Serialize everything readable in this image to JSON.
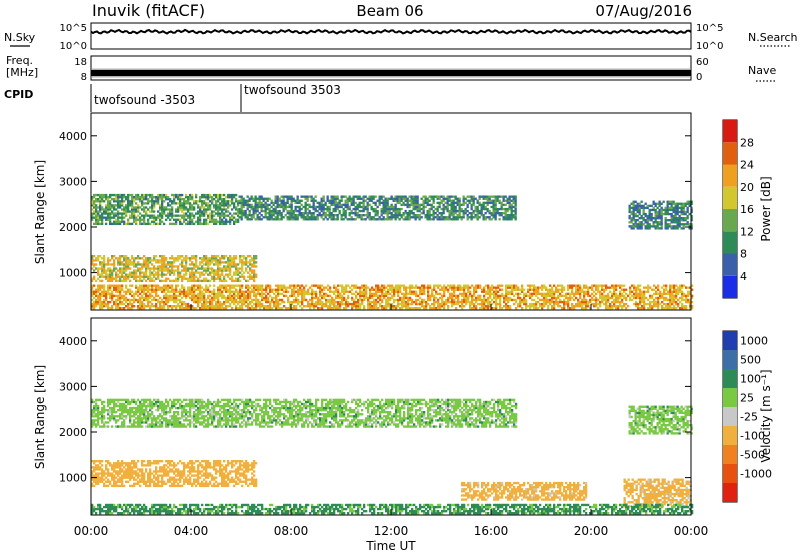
{
  "header": {
    "station": "Inuvik (fitACF)",
    "beam": "Beam 06",
    "date": "07/Aug/2016"
  },
  "noise_panel": {
    "left_label": "N.Sky",
    "right_label": "N.Search",
    "ticks": [
      "10^5",
      "10^0"
    ],
    "ylim_log10": [
      0,
      5
    ],
    "level_log10": 3.6
  },
  "freq_panel": {
    "left_label_line1": "Freq.",
    "left_label_line2": "[MHz]",
    "right_label": "Nave",
    "left_ticks": [
      "18",
      "8"
    ],
    "right_ticks": [
      "60",
      "0"
    ],
    "level_mhz": 10.5
  },
  "cpid": {
    "label": "CPID",
    "segments": [
      {
        "name": "twofsound -3503",
        "start_hour": 0
      },
      {
        "name": "twofsound 3503",
        "start_hour": 6
      }
    ]
  },
  "chart_data": [
    {
      "type": "heatmap",
      "quantity": "power",
      "ylabel": "Slant Range [km]",
      "xlabel": "",
      "xlim_hours": [
        0,
        24
      ],
      "ylim_km": [
        180,
        4500
      ],
      "y_ticks": [
        1000,
        2000,
        3000,
        4000
      ],
      "colorbar_label": "Power [dB]",
      "colorbar_ticks": [
        4,
        8,
        12,
        16,
        20,
        24,
        28
      ],
      "colorbar_colors": [
        "#1a2ee8",
        "#3b5fa8",
        "#2e8b57",
        "#6aa84f",
        "#d4c62e",
        "#f0a020",
        "#e06010",
        "#d81b12"
      ],
      "echo_bands": [
        {
          "from_hour": 0.0,
          "to_hour": 5.9,
          "low_km": 2050,
          "high_km": 2700,
          "value": 12
        },
        {
          "from_hour": 5.9,
          "to_hour": 17.0,
          "low_km": 2150,
          "high_km": 2650,
          "value": 10
        },
        {
          "from_hour": 21.5,
          "to_hour": 24.0,
          "low_km": 1950,
          "high_km": 2550,
          "value": 9
        },
        {
          "from_hour": 0.0,
          "to_hour": 6.6,
          "low_km": 800,
          "high_km": 1350,
          "value": 19
        },
        {
          "from_hour": 0.0,
          "to_hour": 24.0,
          "low_km": 200,
          "high_km": 700,
          "value": 21
        }
      ]
    },
    {
      "type": "heatmap",
      "quantity": "velocity",
      "ylabel": "Slant Range [km]",
      "xlabel": "Time UT",
      "x_ticks": [
        "00:00",
        "04:00",
        "08:00",
        "12:00",
        "16:00",
        "20:00",
        "00:00"
      ],
      "xlim_hours": [
        0,
        24
      ],
      "ylim_km": [
        180,
        4500
      ],
      "y_ticks": [
        1000,
        2000,
        3000,
        4000
      ],
      "colorbar_label": "Velocity [m s⁻¹]",
      "colorbar_ticks": [
        "1000",
        "500",
        "100",
        "25",
        "-25",
        "-100",
        "-500",
        "-1000"
      ],
      "colorbar_colors": [
        "#1f3fb0",
        "#3c6ea8",
        "#2e8b57",
        "#7ac943",
        "#c8c8c8",
        "#f0b040",
        "#f08020",
        "#e85010",
        "#e02010"
      ],
      "echo_bands": [
        {
          "from_hour": 0.0,
          "to_hour": 17.0,
          "low_km": 2100,
          "high_km": 2700,
          "value": 0
        },
        {
          "from_hour": 21.5,
          "to_hour": 24.0,
          "low_km": 1950,
          "high_km": 2550,
          "value": 0
        },
        {
          "from_hour": 0.0,
          "to_hour": 6.6,
          "low_km": 800,
          "high_km": 1350,
          "value": -300
        },
        {
          "from_hour": 14.8,
          "to_hour": 19.8,
          "low_km": 500,
          "high_km": 900,
          "value": -200
        },
        {
          "from_hour": 21.3,
          "to_hour": 24.0,
          "low_km": 350,
          "high_km": 950,
          "value": -200
        },
        {
          "from_hour": 0.0,
          "to_hour": 24.0,
          "low_km": 200,
          "high_km": 400,
          "value": 40
        }
      ]
    }
  ]
}
